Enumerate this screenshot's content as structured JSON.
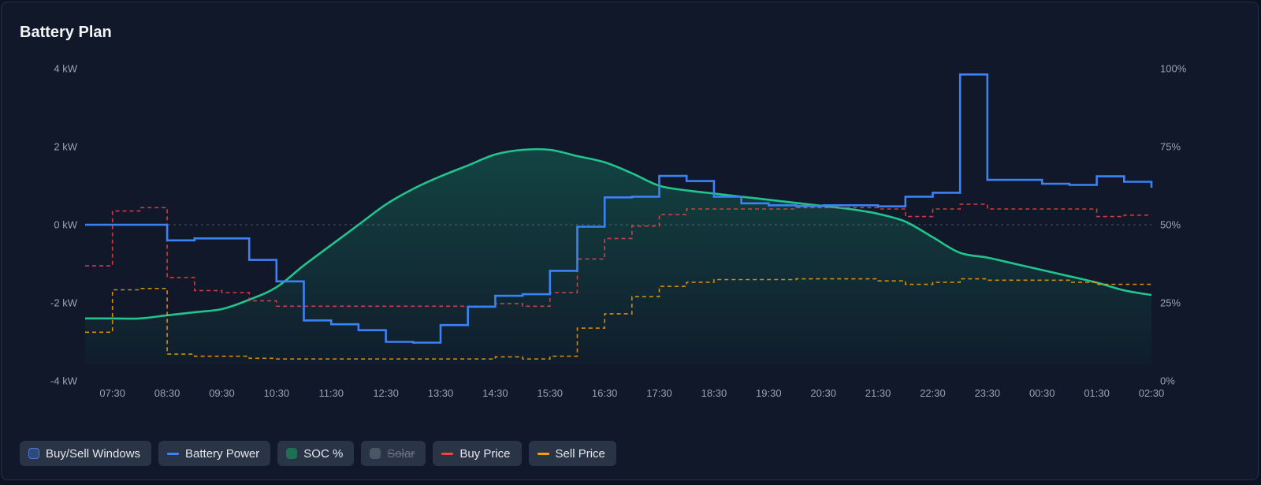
{
  "card": {
    "title": "Battery Plan"
  },
  "chart_data": {
    "type": "line",
    "x": [
      "07:00",
      "07:30",
      "08:00",
      "08:30",
      "09:00",
      "09:30",
      "10:00",
      "10:30",
      "11:00",
      "11:30",
      "12:00",
      "12:30",
      "13:00",
      "13:30",
      "14:00",
      "14:30",
      "15:00",
      "15:30",
      "16:00",
      "16:30",
      "17:00",
      "17:30",
      "18:00",
      "18:30",
      "19:00",
      "19:30",
      "20:00",
      "20:30",
      "21:00",
      "21:30",
      "22:00",
      "22:30",
      "23:00",
      "23:30",
      "00:00",
      "00:30",
      "01:00",
      "01:30",
      "02:00",
      "02:30"
    ],
    "x_tick_labels": [
      "07:30",
      "08:30",
      "09:30",
      "10:30",
      "11:30",
      "12:30",
      "13:30",
      "14:30",
      "15:30",
      "16:30",
      "17:30",
      "18:30",
      "19:30",
      "20:30",
      "21:30",
      "22:30",
      "23:30",
      "00:30",
      "01:30",
      "02:30"
    ],
    "y_left": {
      "ticks": [
        "4 kW",
        "2 kW",
        "0 kW",
        "-2 kW",
        "-4 kW"
      ],
      "min": -4,
      "max": 4,
      "unit": "kW"
    },
    "y_right": {
      "ticks": [
        "100%",
        "75%",
        "50%",
        "25%",
        "0%"
      ],
      "min": 0,
      "max": 100,
      "unit": "%"
    },
    "price_scale": {
      "min": -13.3,
      "max": 32.3
    },
    "series": [
      {
        "name": "Battery Power",
        "axis": "left",
        "style": "step",
        "color": "#3b82f6",
        "values": [
          0,
          0,
          0,
          -0.4,
          -0.35,
          -0.35,
          -0.9,
          -1.45,
          -2.45,
          -2.55,
          -2.7,
          -3.0,
          -3.02,
          -2.57,
          -2.1,
          -1.82,
          -1.78,
          -1.18,
          -0.05,
          0.7,
          0.72,
          1.25,
          1.12,
          0.72,
          0.55,
          0.5,
          0.48,
          0.5,
          0.5,
          0.47,
          0.72,
          0.82,
          3.85,
          1.15,
          1.15,
          1.05,
          1.02,
          1.24,
          1.1,
          0.95
        ]
      },
      {
        "name": "SOC %",
        "axis": "right",
        "style": "smooth-area",
        "color": "#22c48e",
        "values": [
          20,
          20,
          20,
          21,
          22,
          23,
          26,
          30,
          37,
          43.5,
          50,
          56.5,
          61.5,
          65.5,
          69,
          72.5,
          74,
          74,
          72,
          70,
          66.5,
          62.5,
          61,
          60,
          59,
          58,
          57,
          56,
          55,
          53.5,
          51,
          46,
          41,
          39.5,
          37.5,
          35.5,
          33.5,
          31.5,
          29,
          27.5
        ]
      },
      {
        "name": "Buy Price",
        "axis": "price",
        "style": "dashed-step",
        "color": "#ef4444",
        "values": [
          3.5,
          11.5,
          12.0,
          1.8,
          -0.1,
          -0.4,
          -1.6,
          -2.4,
          -2.4,
          -2.4,
          -2.4,
          -2.4,
          -2.4,
          -2.4,
          -2.4,
          -2.0,
          -2.4,
          -0.4,
          4.5,
          7.5,
          9.3,
          11.0,
          11.8,
          11.8,
          11.8,
          11.8,
          12.0,
          12.0,
          12.0,
          11.8,
          10.7,
          11.8,
          12.5,
          11.8,
          11.8,
          11.8,
          11.8,
          10.7,
          10.9,
          10.9
        ]
      },
      {
        "name": "Sell Price",
        "axis": "price",
        "style": "dashed-step",
        "color": "#f59e0b",
        "values": [
          -6.2,
          0.0,
          0.2,
          -9.4,
          -9.7,
          -9.7,
          -10.0,
          -10.1,
          -10.1,
          -10.1,
          -10.1,
          -10.1,
          -10.1,
          -10.1,
          -10.1,
          -9.8,
          -10.1,
          -9.7,
          -5.6,
          -3.5,
          -1.0,
          0.5,
          1.1,
          1.5,
          1.5,
          1.5,
          1.6,
          1.6,
          1.6,
          1.3,
          0.8,
          1.1,
          1.6,
          1.4,
          1.4,
          1.4,
          1.1,
          0.8,
          0.8,
          0.8
        ]
      }
    ],
    "grid": false,
    "zero_line": true,
    "legend": [
      {
        "name": "Buy/Sell Windows",
        "kind": "box",
        "color": "#2f4a7a",
        "border": "#4f7bd1",
        "enabled": true
      },
      {
        "name": "Battery Power",
        "kind": "line",
        "color": "#3b82f6",
        "enabled": true
      },
      {
        "name": "SOC %",
        "kind": "box",
        "color": "#1f6f53",
        "border": "#1f6f53",
        "enabled": true
      },
      {
        "name": "Solar",
        "kind": "box",
        "color": "#4b5563",
        "border": "#4b5563",
        "enabled": false
      },
      {
        "name": "Buy Price",
        "kind": "line",
        "color": "#ef4444",
        "enabled": true
      },
      {
        "name": "Sell Price",
        "kind": "line",
        "color": "#f59e0b",
        "enabled": true
      }
    ],
    "legend_position": "bottom-left"
  }
}
